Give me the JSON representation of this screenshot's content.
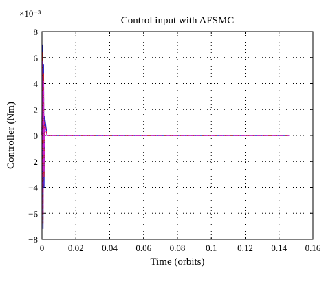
{
  "chart_data": {
    "type": "line",
    "title": "Control input with AFSMC",
    "xlabel": "Time (orbits)",
    "ylabel": "Controller (Nm)",
    "y_multiplier_label": "×10⁻³",
    "xlim": [
      0,
      0.16
    ],
    "ylim": [
      -8,
      8
    ],
    "xticks": [
      0,
      0.02,
      0.04,
      0.06,
      0.08,
      0.1,
      0.12,
      0.14,
      0.16
    ],
    "xtick_labels": [
      "0",
      "0.02",
      "0.04",
      "0.06",
      "0.08",
      "0.1",
      "0.12",
      "0.14",
      "0.16"
    ],
    "yticks": [
      -8,
      -6,
      -4,
      -2,
      0,
      2,
      4,
      6,
      8
    ],
    "ytick_labels": [
      "−8",
      "−6",
      "−4",
      "−2",
      "0",
      "2",
      "4",
      "6",
      "8"
    ],
    "grid": true,
    "series": [
      {
        "color": "#2222cc",
        "dash": "solid",
        "x": [
          0,
          0.0003,
          0.0006,
          0.0009,
          0.0012,
          0.0015,
          0.003,
          0.146
        ],
        "y": [
          0,
          7.0,
          -7.2,
          5.5,
          -4.0,
          1.5,
          0,
          0
        ]
      },
      {
        "color": "#cc2222",
        "dash": "dashed",
        "x": [
          0,
          0.0003,
          0.0006,
          0.0009,
          0.0012,
          0.0015,
          0.003,
          0.146
        ],
        "y": [
          0,
          6.4,
          -6.8,
          4.8,
          -3.2,
          1.0,
          0,
          0
        ]
      },
      {
        "color": "#cc22cc",
        "dash": "dashdot",
        "x": [
          0,
          0.0003,
          0.0006,
          0.0009,
          0.0012,
          0.0015,
          0.003,
          0.146
        ],
        "y": [
          0,
          5.8,
          -6.0,
          4.2,
          -2.8,
          0.8,
          0,
          0
        ]
      }
    ]
  }
}
